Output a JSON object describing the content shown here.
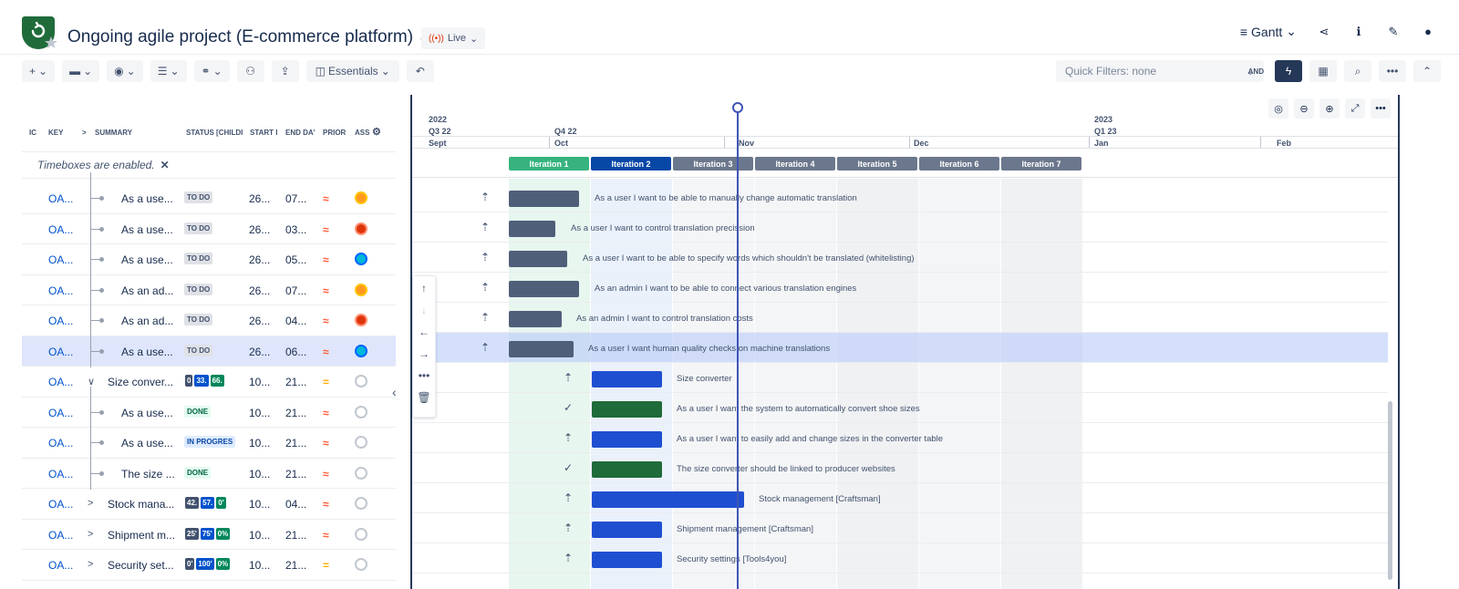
{
  "header": {
    "project_title": "Ongoing agile project (E-commerce platform)",
    "live_label": "Live",
    "view_label": "Gantt"
  },
  "toolbar": {
    "essentials_label": "Essentials",
    "quick_filters_label": "Quick Filters: none",
    "and_label": "AND"
  },
  "grid": {
    "columns": [
      "IC",
      "KEY",
      "SUMMARY",
      "STATUS [CHILDI",
      "START I",
      "END DA'",
      "PRIOR",
      "ASS"
    ],
    "timeboxes_note": "Timeboxes are enabled.",
    "rows": [
      {
        "key": "OA...",
        "summary": "As a use...",
        "status": "TO DO",
        "start": "26...",
        "end": "07...",
        "prio": "high",
        "prio_glyph": "≈",
        "avatar": "av-1",
        "kind": "child"
      },
      {
        "key": "OA...",
        "summary": "As a use...",
        "status": "TO DO",
        "start": "26...",
        "end": "03...",
        "prio": "high",
        "prio_glyph": "≈",
        "avatar": "av-2",
        "kind": "child"
      },
      {
        "key": "OA...",
        "summary": "As a use...",
        "status": "TO DO",
        "start": "26...",
        "end": "05...",
        "prio": "high",
        "prio_glyph": "≈",
        "avatar": "av-3",
        "kind": "child"
      },
      {
        "key": "OA...",
        "summary": "As an ad...",
        "status": "TO DO",
        "start": "26...",
        "end": "07...",
        "prio": "high",
        "prio_glyph": "≈",
        "avatar": "av-1",
        "kind": "child"
      },
      {
        "key": "OA...",
        "summary": "As an ad...",
        "status": "TO DO",
        "start": "26...",
        "end": "04...",
        "prio": "high",
        "prio_glyph": "≈",
        "avatar": "av-2",
        "kind": "child"
      },
      {
        "key": "OA...",
        "summary": "As a use...",
        "status": "TO DO",
        "start": "26...",
        "end": "06...",
        "prio": "high",
        "prio_glyph": "≈",
        "avatar": "av-3",
        "kind": "child",
        "selected": true
      },
      {
        "key": "OA...",
        "summary": "Size conver...",
        "pills": [
          "0",
          "33.",
          "66."
        ],
        "start": "10...",
        "end": "21...",
        "prio": "med",
        "prio_glyph": "=",
        "avatar": "av-none",
        "kind": "parent",
        "expander": "∨"
      },
      {
        "key": "OA...",
        "summary": "As a use...",
        "status": "DONE",
        "start": "10...",
        "end": "21...",
        "prio": "high",
        "prio_glyph": "≈",
        "avatar": "av-none",
        "kind": "child"
      },
      {
        "key": "OA...",
        "summary": "As a use...",
        "status": "IN PROGRES",
        "start": "10...",
        "end": "21...",
        "prio": "high",
        "prio_glyph": "≈",
        "avatar": "av-none",
        "kind": "child"
      },
      {
        "key": "OA...",
        "summary": "The size ...",
        "status": "DONE",
        "start": "10...",
        "end": "21...",
        "prio": "high",
        "prio_glyph": "≈",
        "avatar": "av-none",
        "kind": "child"
      },
      {
        "key": "OA...",
        "summary": "Stock mana...",
        "pills": [
          "42.",
          "57.",
          "0'"
        ],
        "start": "10...",
        "end": "04...",
        "prio": "high",
        "prio_glyph": "≈",
        "avatar": "av-none",
        "kind": "parent",
        "expander": ">"
      },
      {
        "key": "OA...",
        "summary": "Shipment m...",
        "pills": [
          "25'",
          "75'",
          "0%"
        ],
        "start": "10...",
        "end": "21...",
        "prio": "high",
        "prio_glyph": "≈",
        "avatar": "av-none",
        "kind": "parent",
        "expander": ">"
      },
      {
        "key": "OA...",
        "summary": "Security set...",
        "pills": [
          "0'",
          "100'",
          "0%"
        ],
        "start": "10...",
        "end": "21...",
        "prio": "med",
        "prio_glyph": "=",
        "avatar": "av-none",
        "kind": "parent",
        "expander": ">"
      }
    ]
  },
  "timeline": {
    "years": [
      "2022",
      "2023"
    ],
    "quarters": [
      "Q3 22",
      "Q4 22",
      "Q1 23"
    ],
    "months": [
      "Sept",
      "Oct",
      "Nov",
      "Dec",
      "Jan",
      "Feb"
    ],
    "iterations": [
      "Iteration 1",
      "Iteration 2",
      "Iteration 3",
      "Iteration 4",
      "Iteration 5",
      "Iteration 6",
      "Iteration 7"
    ]
  },
  "gantt_rows": [
    {
      "label": "As a user I want to be able to manually change automatic translation",
      "icon": "⇡",
      "bar": "slate"
    },
    {
      "label": "As a user I want to control translation precission",
      "icon": "⇡",
      "bar": "slate"
    },
    {
      "label": "As a user I want to be able to specify words which shouldn't be translated (whitelisting)",
      "icon": "⇡",
      "bar": "slate"
    },
    {
      "label": "As an admin I want to be able to connect various translation engines",
      "icon": "⇡",
      "bar": "slate"
    },
    {
      "label": "As an admin I want to control translation costs",
      "icon": "⇡",
      "bar": "slate"
    },
    {
      "label": "As a user I want human quality checks on machine translations",
      "icon": "⇡",
      "bar": "slate",
      "selected": true
    },
    {
      "label": "Size converter",
      "icon": "⇡",
      "bar": "parent"
    },
    {
      "label": "As a user I want the system to automatically convert shoe sizes",
      "icon": "✓",
      "bar": "green"
    },
    {
      "label": "As a user I want to easily add and change sizes in the converter table",
      "icon": "⇡",
      "bar": "blue"
    },
    {
      "label": "The size converter should be linked to producer websites",
      "icon": "✓",
      "bar": "green"
    },
    {
      "label": "Stock management [Craftsman]",
      "icon": "⇡",
      "bar": "blue"
    },
    {
      "label": "Shipment management [Craftsman]",
      "icon": "⇡",
      "bar": "blue"
    },
    {
      "label": "Security settings [Tools4you]",
      "icon": "⇡",
      "bar": "blue"
    }
  ]
}
